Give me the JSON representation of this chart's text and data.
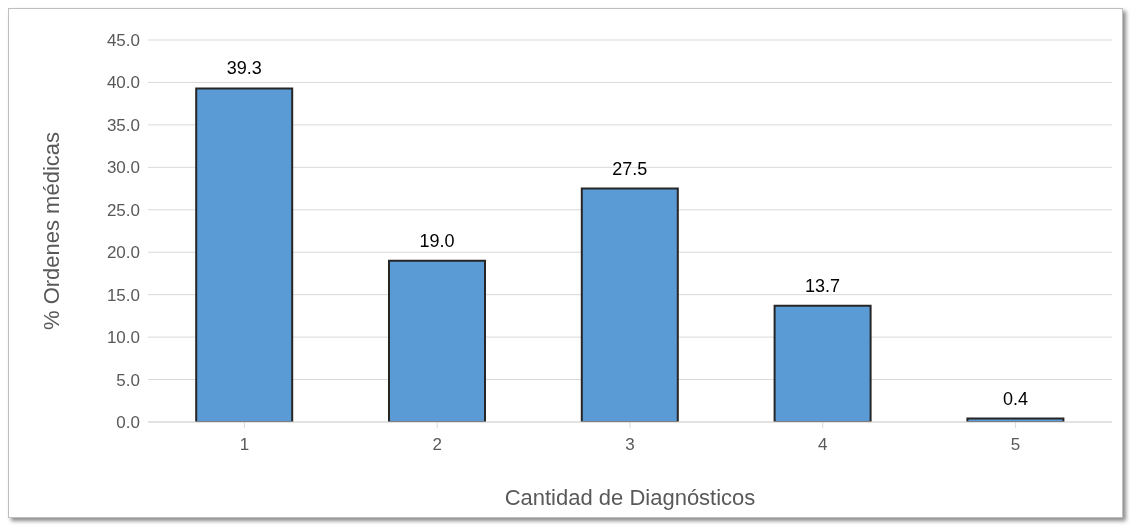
{
  "chart_data": {
    "type": "bar",
    "xlabel": "Cantidad de Diagnósticos",
    "ylabel": "% Ordenes médicas",
    "categories": [
      "1",
      "2",
      "3",
      "4",
      "5"
    ],
    "values": [
      39.3,
      19.0,
      27.5,
      13.7,
      0.4
    ],
    "value_labels": [
      "39.3",
      "19.0",
      "27.5",
      "13.7",
      "0.4"
    ],
    "color": "#5b9bd5",
    "ylim": [
      0,
      45
    ],
    "yticks": [
      {
        "value": 0,
        "label": "0.0"
      },
      {
        "value": 5,
        "label": "5.0"
      },
      {
        "value": 10,
        "label": "10.0"
      },
      {
        "value": 15,
        "label": "15.0"
      },
      {
        "value": 20,
        "label": "20.0"
      },
      {
        "value": 25,
        "label": "25.0"
      },
      {
        "value": 30,
        "label": "30.0"
      },
      {
        "value": 35,
        "label": "35.0"
      },
      {
        "value": 40,
        "label": "40.0"
      },
      {
        "value": 45,
        "label": "45.0"
      }
    ],
    "grid": "y"
  }
}
